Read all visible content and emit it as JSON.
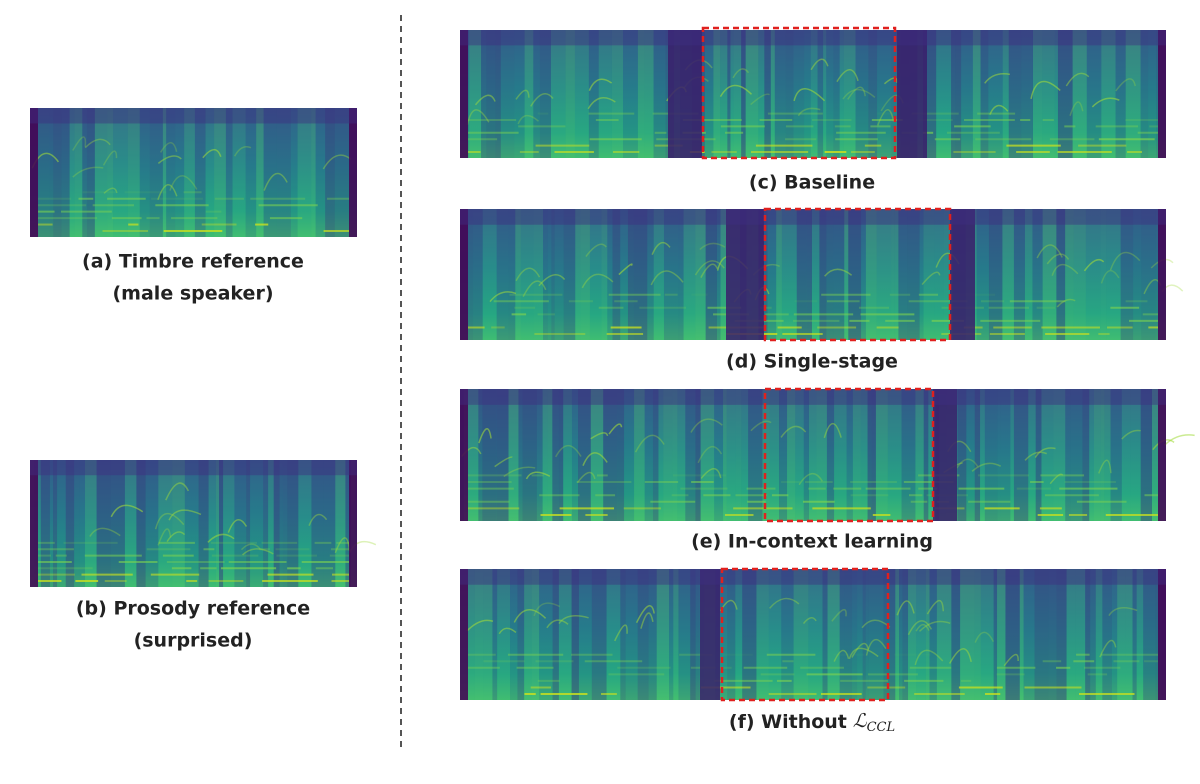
{
  "left_panels": [
    {
      "caption_lines": [
        "(a) Timbre reference",
        "(male speaker)"
      ]
    },
    {
      "caption_lines": [
        "(b) Prosody reference",
        "(surprised)"
      ]
    }
  ],
  "right_panels": [
    {
      "caption": "(c) Baseline"
    },
    {
      "caption": "(d) Single-stage"
    },
    {
      "caption": "(e) In-context learning"
    },
    {
      "caption": "(f) Without",
      "symbol": "ℒ",
      "subscript": "CCL"
    }
  ]
}
